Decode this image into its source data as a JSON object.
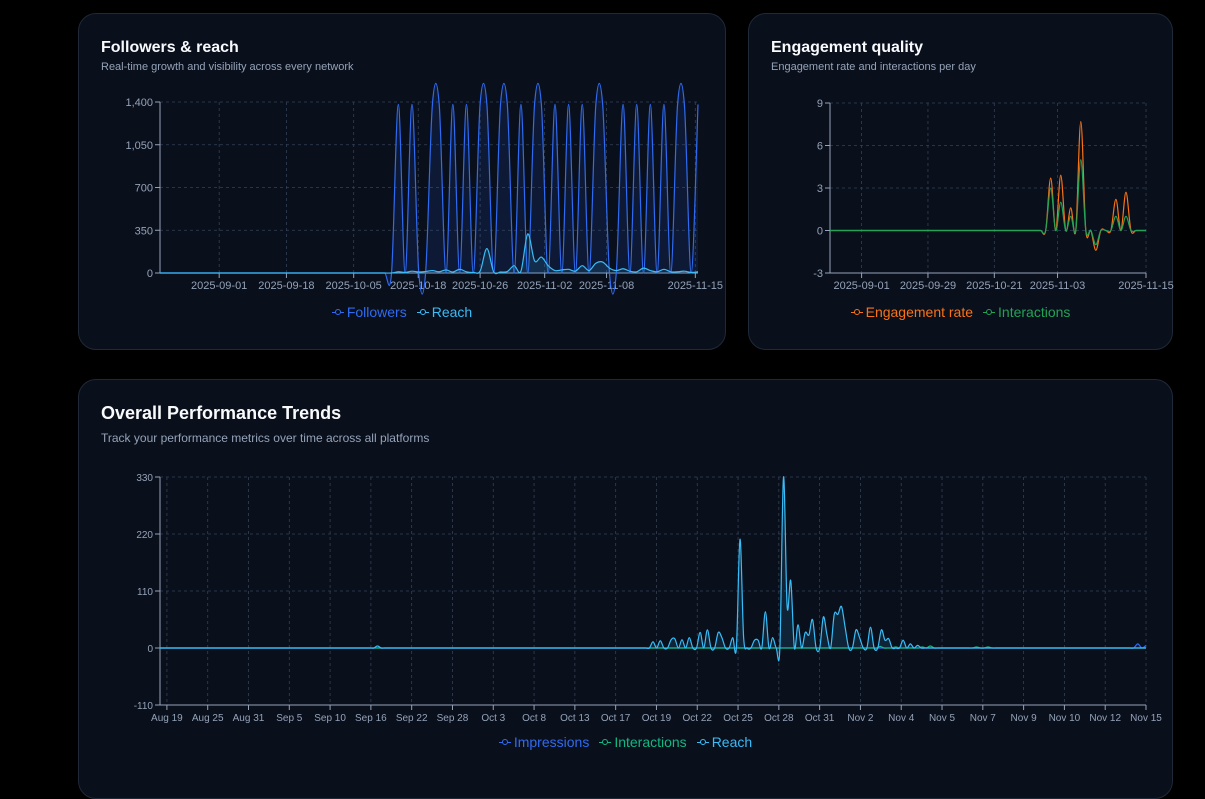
{
  "cards": {
    "followers": {
      "title": "Followers & reach",
      "subtitle": "Real-time growth and visibility across every network"
    },
    "engagement": {
      "title": "Engagement quality",
      "subtitle": "Engagement rate and interactions per day"
    },
    "performance": {
      "title": "Overall Performance Trends",
      "subtitle": "Track your performance metrics over time across all platforms"
    }
  },
  "chart_data": [
    {
      "id": "followers",
      "type": "area",
      "x_tick_labels": [
        "2025-09-01",
        "2025-09-18",
        "2025-10-05",
        "2025-10-18",
        "2025-10-26",
        "2025-11-02",
        "2025-11-08",
        "2025-11-15"
      ],
      "y_tick_labels": [
        "0",
        "350",
        "700",
        "1,050",
        "1,400"
      ],
      "ylim": [
        0,
        1400
      ],
      "grid": true,
      "legend": "bottom",
      "series": [
        {
          "name": "Followers",
          "color": "#2f6bf0",
          "values": [
            0,
            0,
            0,
            0,
            0,
            0,
            0,
            0,
            0,
            0,
            0,
            0,
            0,
            0,
            0,
            0,
            0,
            0,
            0,
            0,
            0,
            0,
            0,
            0,
            0,
            0,
            0,
            0,
            0,
            0,
            0,
            0,
            0,
            0,
            0,
            1380,
            0,
            1380,
            0,
            0,
            1380,
            1380,
            0,
            1380,
            0,
            1380,
            0,
            1380,
            1380,
            0,
            1380,
            1380,
            0,
            1380,
            0,
            1380,
            1380,
            0,
            1380,
            0,
            1380,
            0,
            1380,
            0,
            1380,
            1380,
            0,
            0,
            1380,
            0,
            1380,
            0,
            1380,
            0,
            1380,
            0,
            1380,
            1380,
            0,
            1380
          ]
        },
        {
          "name": "Reach",
          "color": "#38bdf8",
          "values": [
            0,
            0,
            0,
            0,
            0,
            0,
            0,
            0,
            0,
            0,
            0,
            0,
            0,
            0,
            0,
            0,
            0,
            0,
            0,
            0,
            0,
            0,
            0,
            0,
            0,
            0,
            0,
            0,
            0,
            0,
            0,
            0,
            0,
            0,
            0,
            10,
            5,
            15,
            8,
            12,
            20,
            10,
            25,
            8,
            30,
            10,
            5,
            15,
            200,
            10,
            8,
            12,
            60,
            15,
            320,
            100,
            130,
            60,
            20,
            25,
            30,
            15,
            60,
            20,
            80,
            90,
            40,
            20,
            35,
            15,
            10,
            40,
            20,
            10,
            30,
            10,
            10,
            15,
            5,
            10
          ]
        }
      ]
    },
    {
      "id": "engagement",
      "type": "line",
      "x_tick_labels": [
        "2025-09-01",
        "2025-09-29",
        "2025-10-21",
        "2025-11-03",
        "2025-11-15"
      ],
      "y_tick_labels": [
        "-3",
        "0",
        "3",
        "6",
        "9"
      ],
      "ylim": [
        -3,
        9
      ],
      "grid": true,
      "legend": "bottom",
      "series": [
        {
          "name": "Engagement rate",
          "color": "#f97316",
          "values": [
            0,
            0,
            0,
            0,
            0,
            0,
            0,
            0,
            0,
            0,
            0,
            0,
            0,
            0,
            0,
            0,
            0,
            0,
            0,
            0,
            0,
            0,
            0,
            0,
            0,
            0,
            0,
            0,
            0,
            0,
            0,
            0,
            0,
            0,
            0,
            0,
            0,
            0,
            0,
            0,
            0,
            0,
            0,
            0,
            3.7,
            0,
            3.9,
            0,
            1.6,
            0,
            7.7,
            0,
            0,
            -1.4,
            0,
            0,
            0,
            2.2,
            0,
            2.7,
            0,
            0,
            0,
            0
          ]
        },
        {
          "name": "Interactions",
          "color": "#22a355",
          "values": [
            0,
            0,
            0,
            0,
            0,
            0,
            0,
            0,
            0,
            0,
            0,
            0,
            0,
            0,
            0,
            0,
            0,
            0,
            0,
            0,
            0,
            0,
            0,
            0,
            0,
            0,
            0,
            0,
            0,
            0,
            0,
            0,
            0,
            0,
            0,
            0,
            0,
            0,
            0,
            0,
            0,
            0,
            0,
            0,
            3,
            0,
            2,
            0,
            1,
            0,
            5,
            0,
            0,
            -1,
            0,
            0,
            0,
            1,
            0,
            1,
            0,
            0,
            0,
            0
          ]
        }
      ]
    },
    {
      "id": "performance",
      "type": "area",
      "x_tick_labels": [
        "Aug 19",
        "Aug 25",
        "Aug 31",
        "Sep 5",
        "Sep 10",
        "Sep 16",
        "Sep 22",
        "Sep 28",
        "Oct 3",
        "Oct 8",
        "Oct 13",
        "Oct 17",
        "Oct 19",
        "Oct 22",
        "Oct 25",
        "Oct 28",
        "Oct 31",
        "Nov 2",
        "Nov 4",
        "Nov 5",
        "Nov 7",
        "Nov 9",
        "Nov 10",
        "Nov 12",
        "Nov 15"
      ],
      "y_tick_labels": [
        "-110",
        "0",
        "110",
        "220",
        "330"
      ],
      "ylim": [
        -110,
        330
      ],
      "grid": true,
      "legend": "bottom",
      "series": [
        {
          "name": "Impressions",
          "color": "#2f6bf0",
          "values": [
            0,
            0,
            0,
            0,
            0,
            0,
            0,
            0,
            0,
            0,
            0,
            0,
            0,
            0,
            0,
            0,
            0,
            0,
            0,
            0,
            0,
            0,
            0,
            0,
            0,
            0,
            0,
            0,
            0,
            0,
            0,
            0,
            0,
            0,
            0,
            0,
            0,
            0,
            0,
            0,
            0,
            0,
            0,
            0,
            0,
            0,
            0,
            0,
            0,
            0,
            0,
            0,
            0,
            0,
            0,
            0,
            0,
            0,
            0,
            0,
            0,
            0,
            0,
            0,
            0,
            0,
            0,
            0,
            0,
            0,
            0,
            0,
            0,
            0,
            0,
            0,
            0,
            0,
            0,
            0,
            0,
            0,
            0,
            0,
            0,
            0,
            0,
            0,
            0,
            0,
            0,
            0,
            0,
            0,
            0,
            0,
            0,
            0,
            0,
            0,
            0,
            0,
            0,
            0,
            0,
            0,
            0,
            0,
            0,
            0,
            0,
            0,
            0,
            0,
            0,
            0,
            0,
            0,
            0,
            0,
            0,
            0,
            0,
            0,
            0,
            0,
            0,
            0,
            0,
            0,
            0,
            0,
            0,
            0,
            0,
            0,
            0,
            0,
            0,
            0,
            0,
            0,
            0,
            0,
            0,
            0,
            0,
            0,
            0,
            0,
            0,
            0,
            0,
            0,
            0,
            0,
            0,
            0,
            0,
            0,
            0,
            0,
            0,
            0,
            0,
            0,
            0,
            0,
            0,
            0,
            0,
            0,
            0,
            0,
            0,
            0,
            0,
            0,
            0,
            0,
            0,
            0,
            0,
            0,
            0,
            0,
            0,
            0,
            0,
            0,
            0,
            0,
            0,
            0,
            0,
            0,
            0,
            0,
            0,
            0,
            0,
            0,
            0,
            0,
            0,
            0,
            0,
            0,
            0,
            0,
            0,
            0,
            0,
            0,
            0,
            0,
            0,
            0,
            0,
            0,
            0,
            0,
            0,
            0,
            0,
            0,
            0,
            0,
            0,
            0,
            0,
            0,
            0,
            0,
            0,
            0,
            0,
            0,
            8,
            0,
            5
          ]
        },
        {
          "name": "Interactions",
          "color": "#10b981",
          "values": [
            0,
            0,
            0,
            0,
            0,
            0,
            0,
            0,
            0,
            0,
            0,
            0,
            0,
            0,
            0,
            0,
            0,
            0,
            0,
            0,
            0,
            0,
            0,
            0,
            0,
            0,
            0,
            0,
            0,
            0,
            0,
            0,
            0,
            0,
            0,
            0,
            0,
            0,
            0,
            0,
            0,
            0,
            0,
            0,
            0,
            0,
            0,
            0,
            0,
            0,
            0,
            0,
            0,
            0,
            0,
            0,
            0,
            0,
            0,
            0,
            0,
            0,
            0,
            0,
            0,
            0,
            0,
            0,
            0,
            0,
            0,
            0,
            0,
            0,
            0,
            0,
            0,
            0,
            0,
            0,
            0,
            0,
            0,
            0,
            0,
            0,
            0,
            0,
            0,
            0,
            0,
            0,
            0,
            0,
            0,
            0,
            0,
            0,
            0,
            0,
            0,
            0,
            0,
            0,
            0,
            0,
            0,
            0,
            0,
            0,
            0,
            0,
            0,
            0,
            0,
            0,
            0,
            0,
            0,
            0,
            0,
            0,
            0,
            0,
            0,
            0,
            0,
            0,
            0,
            0,
            0,
            0,
            0,
            0,
            0,
            0,
            0,
            0,
            0,
            0,
            0,
            0,
            0,
            0,
            0,
            0,
            0,
            0,
            0,
            0,
            0,
            0,
            0,
            0,
            0,
            0,
            0,
            0,
            0,
            0,
            0,
            0,
            0,
            0,
            0,
            0,
            0,
            0,
            0,
            0,
            0,
            0,
            0,
            0,
            0,
            0,
            0,
            0,
            0,
            0,
            0,
            0,
            0,
            0,
            0,
            0,
            0,
            3,
            0,
            0,
            0,
            2,
            0,
            0,
            0,
            0,
            0,
            0,
            2,
            0,
            4,
            0,
            0,
            0,
            0,
            0,
            0,
            0,
            0,
            0,
            0,
            0,
            2,
            0,
            0,
            2,
            0,
            0,
            0,
            0,
            0,
            0,
            0,
            0,
            0,
            0,
            0,
            0,
            0,
            0,
            0,
            0,
            0,
            0,
            0,
            0,
            0,
            0,
            0,
            0,
            0,
            0,
            0,
            0,
            0,
            0,
            0,
            0,
            0,
            0,
            0,
            0,
            0,
            0,
            0,
            0,
            0
          ]
        },
        {
          "name": "Reach",
          "color": "#38bdf8",
          "values": [
            0,
            0,
            0,
            0,
            0,
            0,
            0,
            0,
            0,
            0,
            0,
            0,
            0,
            0,
            0,
            0,
            0,
            0,
            0,
            0,
            0,
            0,
            0,
            0,
            0,
            0,
            0,
            0,
            0,
            0,
            0,
            0,
            0,
            0,
            0,
            0,
            0,
            0,
            0,
            0,
            0,
            0,
            0,
            0,
            0,
            0,
            0,
            0,
            0,
            0,
            0,
            0,
            0,
            0,
            0,
            0,
            0,
            0,
            0,
            0,
            4,
            0,
            0,
            0,
            0,
            0,
            0,
            0,
            0,
            0,
            0,
            0,
            0,
            0,
            0,
            0,
            0,
            0,
            0,
            0,
            0,
            0,
            0,
            0,
            0,
            0,
            0,
            0,
            0,
            0,
            0,
            0,
            0,
            0,
            0,
            0,
            0,
            0,
            0,
            0,
            0,
            0,
            0,
            0,
            0,
            0,
            0,
            0,
            0,
            0,
            0,
            0,
            0,
            0,
            0,
            0,
            0,
            0,
            0,
            0,
            0,
            0,
            0,
            0,
            0,
            0,
            0,
            0,
            0,
            0,
            0,
            0,
            0,
            0,
            0,
            0,
            12,
            0,
            14,
            0,
            0,
            16,
            18,
            0,
            16,
            0,
            20,
            0,
            0,
            30,
            0,
            35,
            0,
            0,
            30,
            20,
            0,
            0,
            20,
            0,
            210,
            20,
            0,
            0,
            15,
            15,
            0,
            70,
            0,
            20,
            0,
            0,
            330,
            80,
            130,
            0,
            45,
            0,
            30,
            25,
            55,
            0,
            0,
            60,
            25,
            0,
            65,
            65,
            80,
            40,
            0,
            0,
            35,
            20,
            0,
            0,
            40,
            0,
            0,
            35,
            15,
            18,
            0,
            0,
            0,
            15,
            0,
            8,
            0,
            5,
            0,
            0,
            0,
            0,
            0,
            0,
            0,
            0,
            0,
            0,
            0,
            0,
            0,
            0,
            0,
            0,
            0,
            0,
            0,
            0,
            0,
            0,
            0,
            0,
            0,
            0,
            0,
            0,
            0,
            0,
            0,
            0,
            0,
            0,
            0,
            0,
            0,
            0,
            0,
            0,
            0,
            0,
            0,
            0,
            0,
            0,
            0,
            0,
            0,
            0,
            0,
            0,
            0,
            0,
            0,
            0,
            0,
            0,
            0,
            0,
            0,
            0,
            0
          ]
        }
      ]
    }
  ]
}
